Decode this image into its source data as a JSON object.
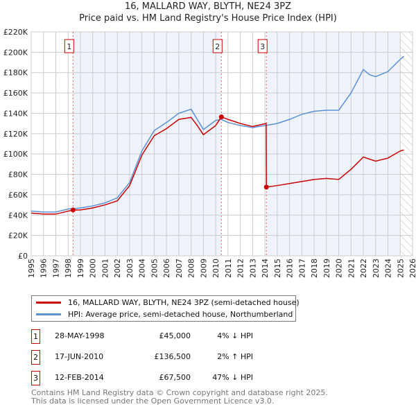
{
  "chart_data": {
    "type": "line",
    "title": "16, MALLARD WAY, BLYTH, NE24 3PZ",
    "subtitle": "Price paid vs. HM Land Registry's House Price Index (HPI)",
    "xlim": [
      1995,
      2026
    ],
    "ylim": [
      0,
      220000
    ],
    "x_ticks": [
      "1995",
      "1996",
      "1997",
      "1998",
      "1999",
      "2000",
      "2001",
      "2002",
      "2003",
      "2004",
      "2005",
      "2006",
      "2007",
      "2008",
      "2009",
      "2010",
      "2011",
      "2012",
      "2013",
      "2014",
      "2015",
      "2016",
      "2017",
      "2018",
      "2019",
      "2020",
      "2021",
      "2022",
      "2023",
      "2024",
      "2025",
      "2026"
    ],
    "y_ticks": [
      {
        "v": 0,
        "label": "£0"
      },
      {
        "v": 20000,
        "label": "£20K"
      },
      {
        "v": 40000,
        "label": "£40K"
      },
      {
        "v": 60000,
        "label": "£60K"
      },
      {
        "v": 80000,
        "label": "£80K"
      },
      {
        "v": 100000,
        "label": "£100K"
      },
      {
        "v": 120000,
        "label": "£120K"
      },
      {
        "v": 140000,
        "label": "£140K"
      },
      {
        "v": 160000,
        "label": "£160K"
      },
      {
        "v": 180000,
        "label": "£180K"
      },
      {
        "v": 200000,
        "label": "£200K"
      },
      {
        "v": 220000,
        "label": "£220K"
      }
    ],
    "shaded_ranges": [
      [
        1998.4,
        2010.46
      ],
      [
        2014.12,
        2025.0
      ]
    ],
    "hatch_from": 2025.0,
    "series": [
      {
        "name": "16, MALLARD WAY, BLYTH, NE24 3PZ (semi-detached house)",
        "color": "#cc0000",
        "x": [
          1995,
          1996,
          1997,
          1998.4,
          1999,
          2000,
          2001,
          2002,
          2003,
          2004,
          2005,
          2006,
          2007,
          2008,
          2008.5,
          2009,
          2010,
          2010.46,
          2011,
          2012,
          2013,
          2014.1,
          2014.12,
          2015,
          2016,
          2017,
          2018,
          2019,
          2020,
          2021,
          2022,
          2022.5,
          2023,
          2024,
          2025,
          2025.3
        ],
        "y": [
          42000,
          41000,
          41000,
          45000,
          45000,
          47000,
          50000,
          54000,
          69000,
          99000,
          118000,
          125000,
          134000,
          136000,
          128000,
          119000,
          128000,
          136500,
          134000,
          130000,
          127000,
          130000,
          67500,
          69000,
          71000,
          73000,
          75000,
          76000,
          75000,
          85000,
          97000,
          95000,
          93000,
          96000,
          103000,
          104000
        ]
      },
      {
        "name": "HPI: Average price, semi-detached house, Northumberland",
        "color": "#5b8fd6",
        "x": [
          1995,
          1996,
          1997,
          1998,
          1999,
          2000,
          2001,
          2002,
          2003,
          2004,
          2005,
          2006,
          2007,
          2008,
          2008.5,
          2009,
          2010,
          2010.46,
          2011,
          2012,
          2013,
          2014,
          2015,
          2016,
          2017,
          2018,
          2019,
          2020,
          2021,
          2022,
          2022.5,
          2023,
          2024,
          2025,
          2025.3
        ],
        "y": [
          44000,
          43000,
          43000,
          46000,
          47000,
          49000,
          52000,
          57000,
          72000,
          103000,
          123000,
          131000,
          140000,
          144000,
          134000,
          124000,
          133000,
          134000,
          131000,
          128000,
          126000,
          128000,
          130000,
          134000,
          139000,
          142000,
          143000,
          143000,
          160000,
          183000,
          178000,
          176000,
          181000,
          193000,
          196000
        ]
      }
    ],
    "markers": [
      {
        "label": "1",
        "x": 1998.4,
        "y": 45000
      },
      {
        "label": "2",
        "x": 2010.46,
        "y": 136500
      },
      {
        "label": "3",
        "x": 2014.12,
        "y": 67500
      }
    ]
  },
  "legend": {
    "red": "16, MALLARD WAY, BLYTH, NE24 3PZ (semi-detached house)",
    "blue": "HPI: Average price, semi-detached house, Northumberland"
  },
  "transactions": [
    {
      "num": "1",
      "date": "28-MAY-1998",
      "price": "£45,000",
      "hpi": "4% ↓ HPI"
    },
    {
      "num": "2",
      "date": "17-JUN-2010",
      "price": "£136,500",
      "hpi": "2% ↑ HPI"
    },
    {
      "num": "3",
      "date": "12-FEB-2014",
      "price": "£67,500",
      "hpi": "47% ↓ HPI"
    }
  ],
  "footer": {
    "line1": "Contains HM Land Registry data © Crown copyright and database right 2025.",
    "line2": "This data is licensed under the Open Government Licence v3.0."
  }
}
